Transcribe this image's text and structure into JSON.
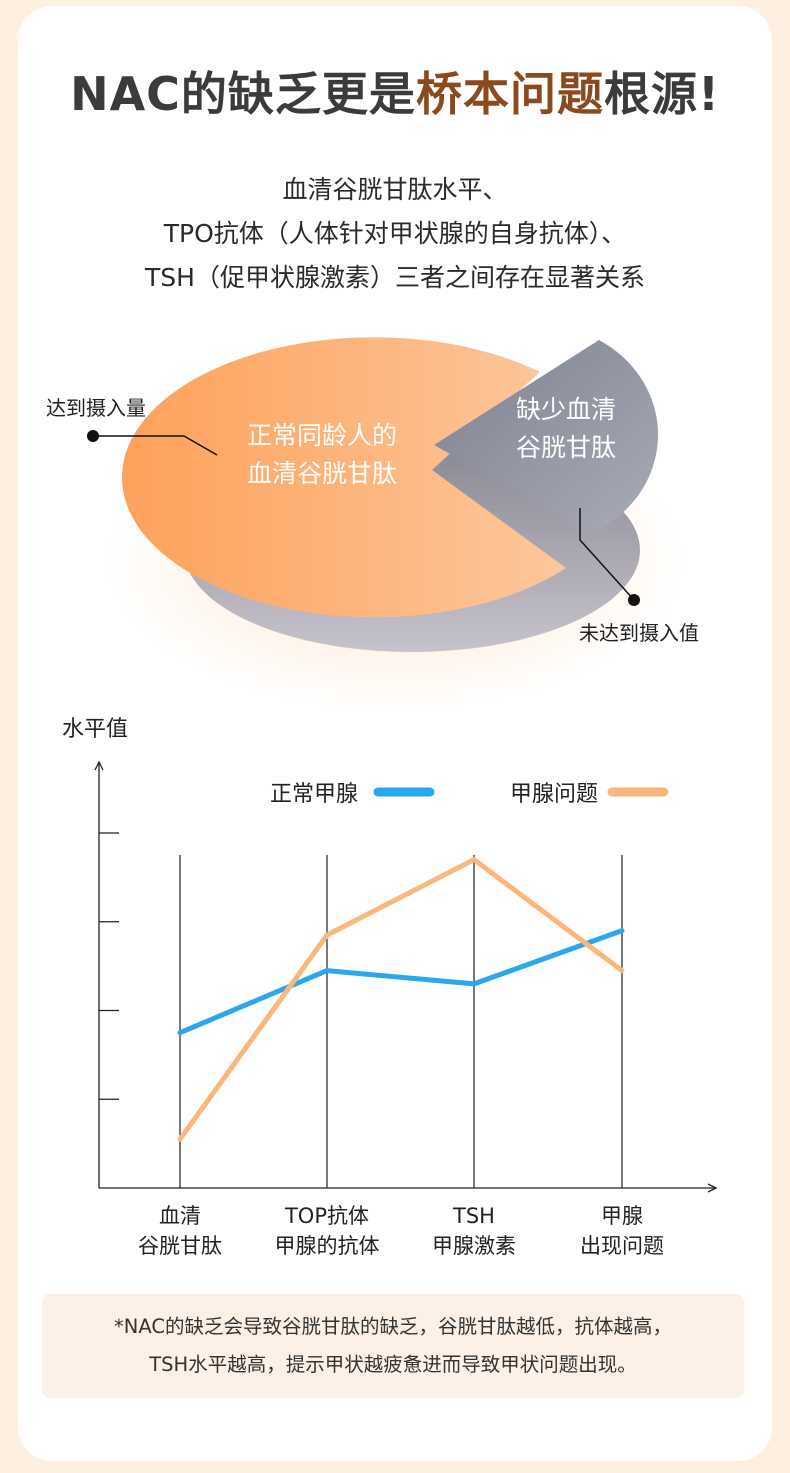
{
  "title": {
    "part1": "NAC的缺乏更是",
    "highlight": "桥本问题",
    "part2": "根源!"
  },
  "subtitle": {
    "line1": "血清谷胱甘肽水平、",
    "line2": "TPO抗体（人体针对甲状腺的自身抗体）、",
    "line3": "TSH（促甲状腺激素）三者之间存在显著关系"
  },
  "pie": {
    "big_label_line1": "正常同龄人的",
    "big_label_line2": "血清谷胱甘肽",
    "small_label_line1": "缺少血清",
    "small_label_line2": "谷胱甘肽",
    "left_callout": "达到摄入量",
    "right_callout": "未达到摄入值",
    "colors": {
      "big": "#fca35d",
      "small": "#8e929e",
      "base": "#9a9aa4"
    }
  },
  "chart_data": {
    "type": "line",
    "ylabel": "水平值",
    "categories": [
      [
        "血清",
        "谷胱甘肽"
      ],
      [
        "TOP抗体",
        "甲腺的抗体"
      ],
      [
        "TSH",
        "甲腺激素"
      ],
      [
        "甲腺",
        "出现问题"
      ]
    ],
    "series": [
      {
        "name": "正常甲腺",
        "color": "#2aa7ee",
        "values": [
          1.75,
          2.45,
          2.3,
          2.9
        ]
      },
      {
        "name": "甲腺问题",
        "color": "#fbb77c",
        "values": [
          0.55,
          2.85,
          3.7,
          2.45
        ]
      }
    ],
    "ylim": [
      0,
      4.8
    ],
    "grid": "vertical lines at categories"
  },
  "note": {
    "line1": "*NAC的缺乏会导致谷胱甘肽的缺乏，谷胱甘肽越低，抗体越高，",
    "line2": "TSH水平越高，提示甲状越疲惫进而导致甲状问题出现。"
  }
}
